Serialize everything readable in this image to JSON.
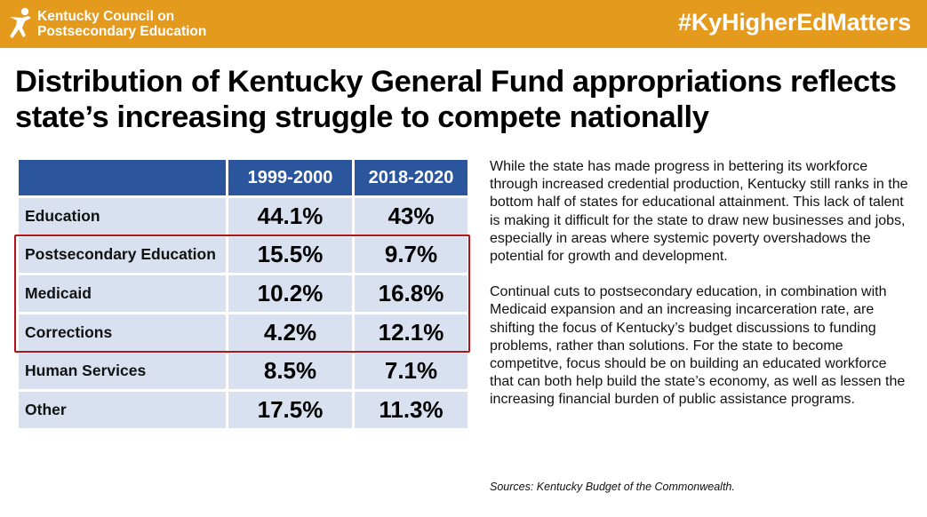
{
  "header": {
    "org_line1": "Kentucky Council on",
    "org_line2": "Postsecondary Education",
    "hashtag": "#KyHigherEdMatters"
  },
  "headline": "Distribution of Kentucky General Fund appropriations reflects state’s increasing struggle to compete nationally",
  "table": {
    "columns": [
      "",
      "1999-2000",
      "2018-2020"
    ],
    "rows": [
      {
        "label": "Education",
        "v1": "44.1%",
        "v2": "43%"
      },
      {
        "label": "Postsecondary Education",
        "v1": "15.5%",
        "v2": "9.7%"
      },
      {
        "label": "Medicaid",
        "v1": "10.2%",
        "v2": "16.8%"
      },
      {
        "label": "Corrections",
        "v1": "4.2%",
        "v2": "12.1%"
      },
      {
        "label": "Human Services",
        "v1": "8.5%",
        "v2": "7.1%"
      },
      {
        "label": "Other",
        "v1": "17.5%",
        "v2": "11.3%"
      }
    ]
  },
  "paragraphs": [
    "While the state has made progress in bettering its workforce through increased credential production, Kentucky still ranks in the bottom half of states for educational attainment. This lack of talent is making it difficult for the state to draw new businesses and jobs, especially in areas where systemic poverty overshadows the potential for growth and development.",
    "Continual cuts to postsecondary education, in combination with Medicaid expansion and an increasing incarceration rate, are shifting the focus of Kentucky’s budget discussions to funding problems, rather than solutions. For the state to become competitve, focus should be on building an educated workforce that can both help build the state’s economy, as well as lessen the increasing financial burden of public assistance programs."
  ],
  "sources": "Sources: Kentucky Budget of the Commonwealth.",
  "colors": {
    "banner": "#e49a1d",
    "table_header": "#2b569e",
    "table_cell": "#d9e1f0",
    "highlight_border": "#b5121b"
  },
  "icons": {
    "logo": "star-person-icon"
  }
}
